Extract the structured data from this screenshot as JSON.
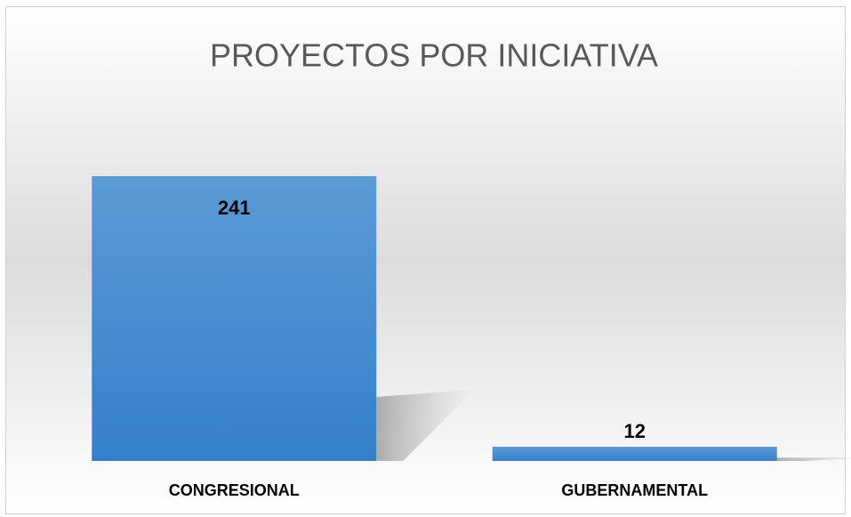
{
  "chart_data": {
    "type": "bar",
    "title": "PROYECTOS POR INICIATIVA",
    "categories": [
      "CONGRESIONAL",
      "GUBERNAMENTAL"
    ],
    "values": [
      241,
      12
    ],
    "color": "#4a8fd4"
  }
}
